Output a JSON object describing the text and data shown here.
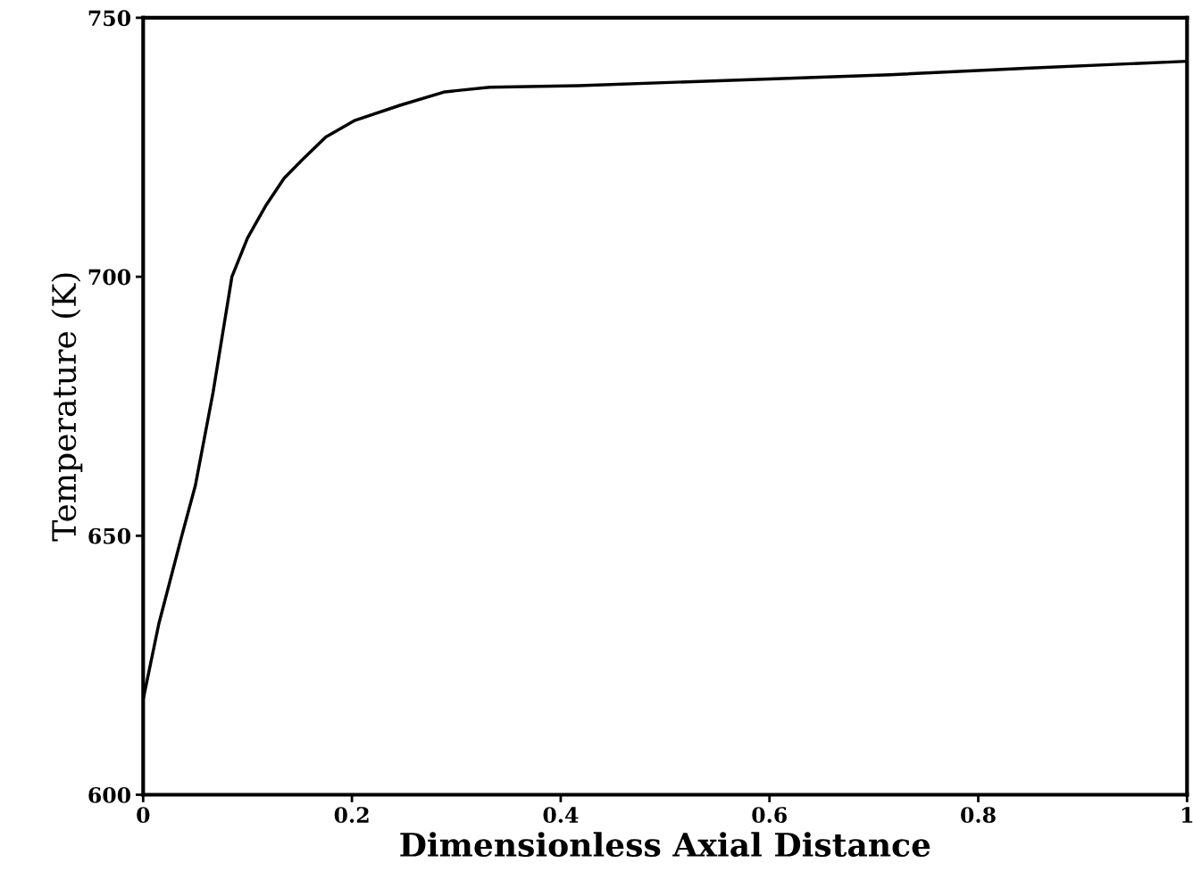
{
  "chart_data": {
    "type": "line",
    "xlabel": "Dimensionless Axial Distance",
    "ylabel": "Temperature (K)",
    "x": [
      0,
      0.015,
      0.037,
      0.05,
      0.067,
      0.085,
      0.1,
      0.118,
      0.135,
      0.152,
      0.175,
      0.203,
      0.246,
      0.289,
      0.332,
      0.417,
      0.545,
      0.716,
      0.85,
      1.0
    ],
    "series": [
      {
        "color": "#000000",
        "values": [
          618.4,
          633,
          650,
          659.7,
          677.7,
          700,
          707.5,
          713.9,
          719,
          722.5,
          727,
          730.2,
          733.1,
          735.7,
          736.6,
          736.9,
          737.8,
          739,
          740.3,
          741.6
        ]
      }
    ],
    "xlim": [
      0,
      1
    ],
    "ylim": [
      600,
      750
    ],
    "xticks": [
      0,
      0.2,
      0.4,
      0.6,
      0.8,
      1
    ],
    "yticks": [
      600,
      650,
      700,
      750
    ],
    "grid": false,
    "legend": false,
    "marker": "none",
    "line_style": "solid"
  }
}
